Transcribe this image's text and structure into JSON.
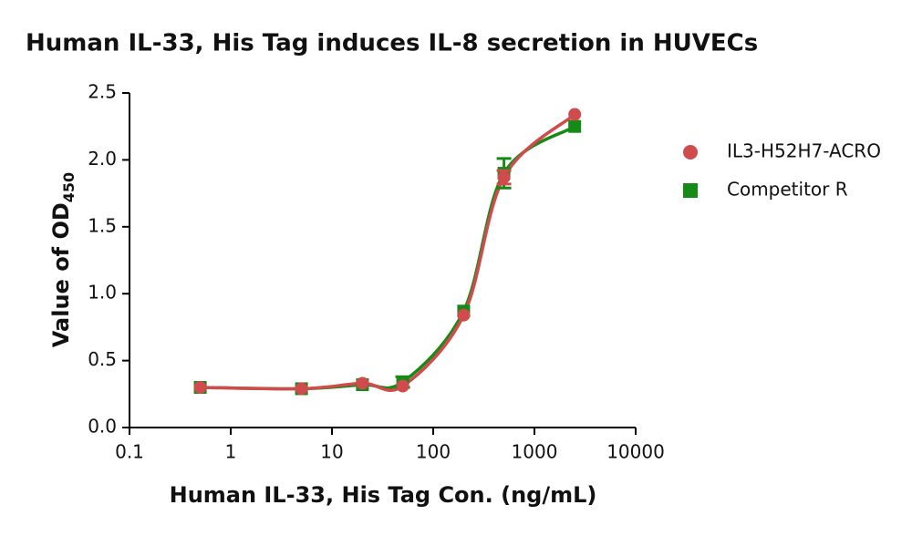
{
  "chart_data": {
    "type": "scatter",
    "title": "Human IL-33, His Tag induces IL-8 secretion in HUVECs",
    "x_label": "Human IL-33, His Tag Con. (ng/mL)",
    "y_label": "Value of OD",
    "y_label_subscript": "450",
    "x_scale": "log",
    "x": [
      0.5,
      5,
      20,
      50,
      200,
      500,
      2500
    ],
    "series": [
      {
        "name": "IL3-H52H7-ACRO",
        "color": "#d04b4b",
        "marker": "circle",
        "values": [
          0.3,
          0.29,
          0.33,
          0.31,
          0.84,
          1.87,
          2.34
        ],
        "errors": [
          null,
          null,
          null,
          null,
          null,
          0.05,
          null
        ]
      },
      {
        "name": "Competitor R",
        "color": "#168a16",
        "marker": "square",
        "values": [
          0.3,
          0.29,
          0.32,
          0.34,
          0.87,
          1.9,
          2.25
        ],
        "errors": [
          null,
          null,
          null,
          0.04,
          null,
          0.11,
          null
        ]
      }
    ],
    "xlim": [
      0.1,
      10000
    ],
    "xticks": [
      0.1,
      1,
      10,
      100,
      1000,
      10000
    ],
    "ylim": [
      0,
      2.5
    ],
    "yticks": [
      {
        "value": 0,
        "label": "0.0"
      },
      0.5,
      {
        "value": 1,
        "label": "1.0"
      },
      1.5,
      {
        "value": 2,
        "label": "2.0"
      },
      2.5
    ],
    "legend": "right"
  }
}
